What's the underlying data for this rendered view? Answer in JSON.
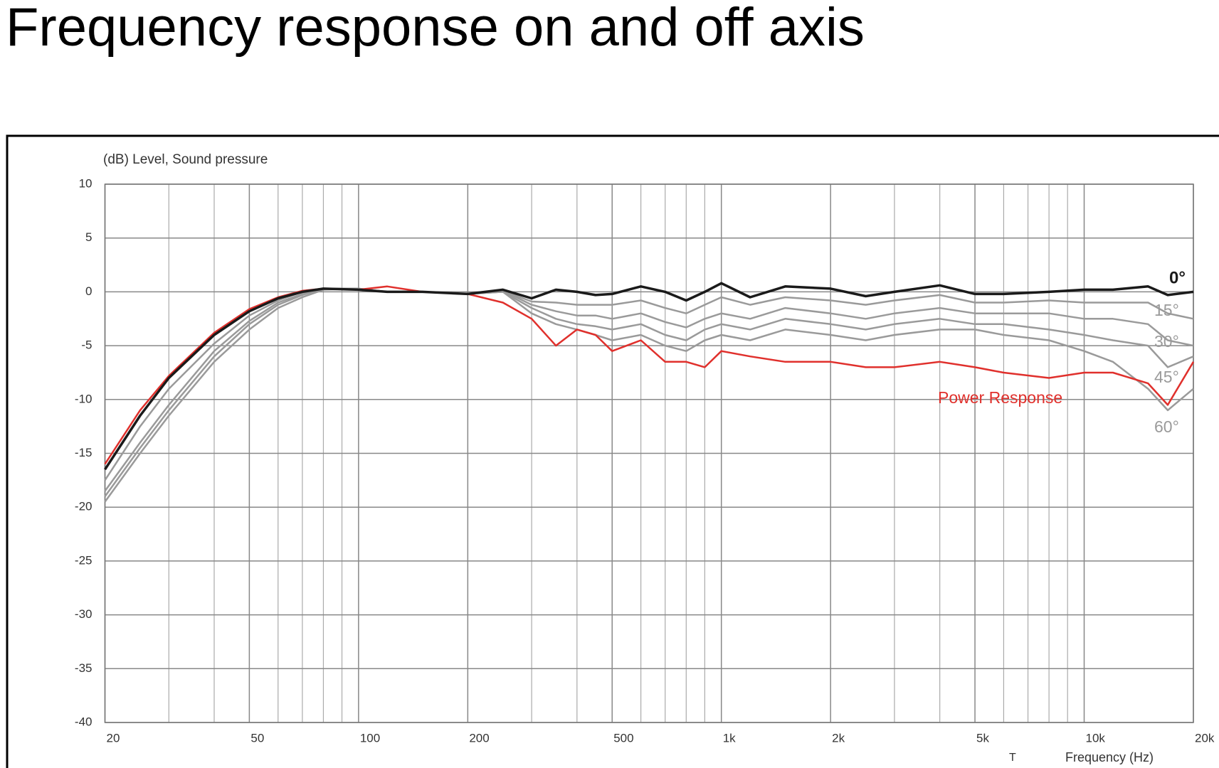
{
  "chart_data": {
    "type": "line",
    "title": "Frequency response on and off axis",
    "y_label": "(dB)  Level, Sound pressure",
    "x_label": "Frequency  (Hz)",
    "annotation": "T",
    "x_log": true,
    "grid": true,
    "x": [
      20,
      25,
      30,
      40,
      50,
      60,
      70,
      80,
      100,
      120,
      150,
      200,
      250,
      300,
      350,
      400,
      450,
      500,
      600,
      700,
      800,
      900,
      1000,
      1200,
      1500,
      2000,
      2500,
      3000,
      4000,
      5000,
      6000,
      8000,
      10000,
      12000,
      15000,
      17000,
      20000
    ],
    "xlim": [
      20,
      20000
    ],
    "xticks": [
      20,
      50,
      100,
      200,
      500,
      {
        "value": 1000,
        "label": "1k"
      },
      {
        "value": 2000,
        "label": "2k"
      },
      {
        "value": 5000,
        "label": "5k"
      },
      {
        "value": 10000,
        "label": "10k"
      },
      {
        "value": 20000,
        "label": "20k"
      }
    ],
    "x_minor_grid": [
      30,
      40,
      60,
      70,
      80,
      90,
      300,
      400,
      600,
      700,
      800,
      900,
      3000,
      4000,
      6000,
      7000,
      8000,
      9000
    ],
    "ylim": [
      -40,
      10
    ],
    "yticks": [
      10,
      5,
      0,
      -5,
      -10,
      -15,
      -20,
      -25,
      -30,
      -35,
      -40
    ],
    "series": [
      {
        "name": "60°",
        "color": "#9a9a9a",
        "values": [
          -19.5,
          -15,
          -11.5,
          -6.5,
          -3.5,
          -1.5,
          -0.5,
          0.2,
          0.3,
          0,
          0,
          -0.2,
          0,
          -2,
          -3,
          -3.5,
          -4,
          -4.5,
          -4,
          -5,
          -5.5,
          -4.5,
          -4,
          -4.5,
          -3.5,
          -4,
          -4.5,
          -4,
          -3.5,
          -3.5,
          -4,
          -4.5,
          -5.5,
          -6.5,
          -9,
          -11,
          -9
        ]
      },
      {
        "name": "45°",
        "color": "#9a9a9a",
        "values": [
          -19,
          -14.5,
          -11,
          -6,
          -3,
          -1.2,
          -0.3,
          0.3,
          0.3,
          0,
          0,
          -0.2,
          0,
          -1.5,
          -2.5,
          -3,
          -3.2,
          -3.5,
          -3,
          -4,
          -4.5,
          -3.5,
          -3,
          -3.5,
          -2.5,
          -3,
          -3.5,
          -3,
          -2.5,
          -3,
          -3,
          -3.5,
          -4,
          -4.5,
          -5,
          -7,
          -6
        ]
      },
      {
        "name": "30°",
        "color": "#9a9a9a",
        "values": [
          -18.5,
          -14,
          -10.5,
          -5.5,
          -2.7,
          -1,
          -0.2,
          0.3,
          0.3,
          0,
          0,
          -0.2,
          0.1,
          -1.2,
          -1.8,
          -2.2,
          -2.2,
          -2.5,
          -2,
          -2.8,
          -3.3,
          -2.5,
          -2,
          -2.5,
          -1.5,
          -2,
          -2.5,
          -2,
          -1.5,
          -2,
          -2,
          -2,
          -2.5,
          -2.5,
          -3,
          -4.5,
          -5
        ]
      },
      {
        "name": "15°",
        "color": "#9a9a9a",
        "values": [
          -17.5,
          -12.5,
          -9,
          -4.8,
          -2.2,
          -0.8,
          0,
          0.3,
          0.2,
          0,
          0,
          -0.2,
          0.1,
          -0.9,
          -1,
          -1.2,
          -1.2,
          -1.2,
          -0.8,
          -1.5,
          -2,
          -1.2,
          -0.5,
          -1.2,
          -0.5,
          -0.8,
          -1.2,
          -0.8,
          -0.3,
          -1,
          -1,
          -0.8,
          -1,
          -1,
          -1,
          -2,
          -2.5
        ]
      },
      {
        "name": "Power Response",
        "color": "#e0302c",
        "values": [
          -16,
          -11,
          -7.8,
          -3.8,
          -1.6,
          -0.5,
          0.1,
          0.3,
          0.2,
          0.5,
          0,
          -0.2,
          -1,
          -2.5,
          -5,
          -3.5,
          -4,
          -5.5,
          -4.5,
          -6.5,
          -6.5,
          -7,
          -5.5,
          -6,
          -6.5,
          -6.5,
          -7,
          -7,
          -6.5,
          -7,
          -7.5,
          -8,
          -7.5,
          -7.5,
          -8.5,
          -10.5,
          -6.5
        ]
      },
      {
        "name": "0°",
        "color": "#1a1a1a",
        "values": [
          -16.5,
          -11.5,
          -8,
          -4,
          -1.8,
          -0.6,
          0,
          0.3,
          0.2,
          0,
          0,
          -0.2,
          0.2,
          -0.6,
          0.2,
          0,
          -0.3,
          -0.2,
          0.5,
          0,
          -0.8,
          0,
          0.8,
          -0.5,
          0.5,
          0.3,
          -0.4,
          0,
          0.6,
          -0.2,
          -0.2,
          0,
          0.2,
          0.2,
          0.5,
          -0.3,
          0
        ]
      }
    ]
  }
}
